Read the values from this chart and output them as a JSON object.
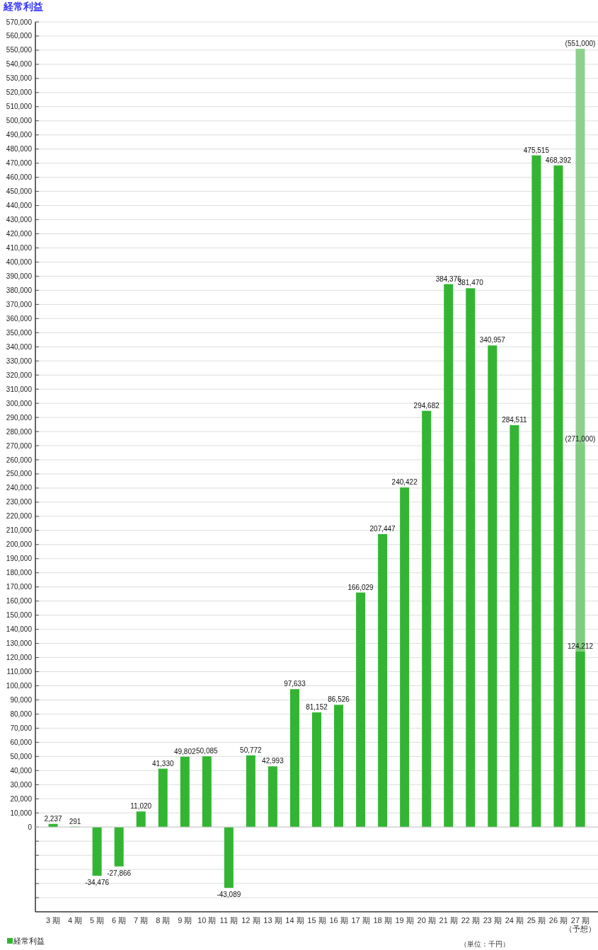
{
  "chart_data": {
    "type": "bar",
    "title": "経常利益",
    "categories": [
      "3 期",
      "4 期",
      "5 期",
      "6 期",
      "7 期",
      "8 期",
      "9 期",
      "10 期",
      "11 期",
      "12 期",
      "13 期",
      "14 期",
      "15 期",
      "16 期",
      "17 期",
      "18 期",
      "19 期",
      "20 期",
      "21 期",
      "22 期",
      "23 期",
      "24 期",
      "25 期",
      "26 期",
      "27 期（予想）"
    ],
    "series": [
      {
        "color": "#8ed08e",
        "values": [
          null,
          null,
          null,
          null,
          null,
          null,
          null,
          null,
          null,
          null,
          null,
          null,
          null,
          null,
          null,
          null,
          null,
          null,
          null,
          null,
          null,
          null,
          null,
          null,
          551000
        ],
        "value_labels": [
          null,
          null,
          null,
          null,
          null,
          null,
          null,
          null,
          null,
          null,
          null,
          null,
          null,
          null,
          null,
          null,
          null,
          null,
          null,
          null,
          null,
          null,
          null,
          null,
          "(551,000)"
        ]
      },
      {
        "color": "#7fce7f",
        "values": [
          null,
          null,
          null,
          null,
          null,
          null,
          null,
          null,
          null,
          null,
          null,
          null,
          null,
          null,
          null,
          null,
          null,
          null,
          null,
          null,
          null,
          null,
          null,
          null,
          271000
        ],
        "value_labels": [
          null,
          null,
          null,
          null,
          null,
          null,
          null,
          null,
          null,
          null,
          null,
          null,
          null,
          null,
          null,
          null,
          null,
          null,
          null,
          null,
          null,
          null,
          null,
          null,
          "(271,000)"
        ]
      },
      {
        "name": "経常利益",
        "color": "#33b533",
        "values": [
          2237,
          291,
          -34476,
          -27866,
          11020,
          41330,
          49802,
          50085,
          -43089,
          50772,
          42993,
          97633,
          81152,
          86526,
          166029,
          207447,
          240422,
          294682,
          384376,
          381470,
          340957,
          284511,
          475515,
          468392,
          124212
        ],
        "value_labels": [
          "2,237",
          "291",
          "-34,476",
          "-27,866",
          "11,020",
          "41,330",
          "49,802",
          "50,085",
          "-43,089",
          "50,772",
          "42,993",
          "97,633",
          "81,152",
          "86,526",
          "166,029",
          "207,447",
          "240,422",
          "294,682",
          "384,376",
          "381,470",
          "340,957",
          "284,511",
          "475,515",
          "468,392",
          "124,212"
        ]
      }
    ],
    "ylim": [
      -60000,
      570000
    ],
    "yticks": [
      {
        "value": -50000,
        "label": null
      },
      {
        "value": -40000,
        "label": null
      },
      {
        "value": -30000,
        "label": null
      },
      {
        "value": -20000,
        "label": null
      },
      {
        "value": -10000,
        "label": null
      },
      0,
      {
        "value": 10000,
        "label": "10,000"
      },
      {
        "value": 20000,
        "label": "20,000"
      },
      {
        "value": 30000,
        "label": "30,000"
      },
      {
        "value": 40000,
        "label": "40,000"
      },
      {
        "value": 50000,
        "label": "50,000"
      },
      {
        "value": 60000,
        "label": "60,000"
      },
      {
        "value": 70000,
        "label": "70,000"
      },
      {
        "value": 80000,
        "label": "80,000"
      },
      {
        "value": 90000,
        "label": "90,000"
      },
      {
        "value": 100000,
        "label": "100,000"
      },
      {
        "value": 110000,
        "label": "110,000"
      },
      {
        "value": 120000,
        "label": "120,000"
      },
      {
        "value": 130000,
        "label": "130,000"
      },
      {
        "value": 140000,
        "label": "140,000"
      },
      {
        "value": 150000,
        "label": "150,000"
      },
      {
        "value": 160000,
        "label": "160,000"
      },
      {
        "value": 170000,
        "label": "170,000"
      },
      {
        "value": 180000,
        "label": "180,000"
      },
      {
        "value": 190000,
        "label": "190,000"
      },
      {
        "value": 200000,
        "label": "200,000"
      },
      {
        "value": 210000,
        "label": "210,000"
      },
      {
        "value": 220000,
        "label": "220,000"
      },
      {
        "value": 230000,
        "label": "230,000"
      },
      {
        "value": 240000,
        "label": "240,000"
      },
      {
        "value": 250000,
        "label": "250,000"
      },
      {
        "value": 260000,
        "label": "260,000"
      },
      {
        "value": 270000,
        "label": "270,000"
      },
      {
        "value": 280000,
        "label": "280,000"
      },
      {
        "value": 290000,
        "label": "290,000"
      },
      {
        "value": 300000,
        "label": "300,000"
      },
      {
        "value": 310000,
        "label": "310,000"
      },
      {
        "value": 320000,
        "label": "320,000"
      },
      {
        "value": 330000,
        "label": "330,000"
      },
      {
        "value": 340000,
        "label": "340,000"
      },
      {
        "value": 350000,
        "label": "350,000"
      },
      {
        "value": 360000,
        "label": "360,000"
      },
      {
        "value": 370000,
        "label": "370,000"
      },
      {
        "value": 380000,
        "label": "380,000"
      },
      {
        "value": 390000,
        "label": "390,000"
      },
      {
        "value": 400000,
        "label": "400,000"
      },
      {
        "value": 410000,
        "label": "410,000"
      },
      {
        "value": 420000,
        "label": "420,000"
      },
      {
        "value": 430000,
        "label": "430,000"
      },
      {
        "value": 440000,
        "label": "440,000"
      },
      {
        "value": 450000,
        "label": "450,000"
      },
      {
        "value": 460000,
        "label": "460,000"
      },
      {
        "value": 470000,
        "label": "470,000"
      },
      {
        "value": 480000,
        "label": "480,000"
      },
      {
        "value": 490000,
        "label": "490,000"
      },
      {
        "value": 500000,
        "label": "500,000"
      },
      {
        "value": 510000,
        "label": "510,000"
      },
      {
        "value": 520000,
        "label": "520,000"
      },
      {
        "value": 530000,
        "label": "530,000"
      },
      {
        "value": 540000,
        "label": "540,000"
      },
      {
        "value": 550000,
        "label": "550,000"
      },
      {
        "value": 560000,
        "label": "560,000"
      },
      {
        "value": 570000,
        "label": "570,000"
      }
    ],
    "grid": "y",
    "legend": "bottom left",
    "annotations": [
      "（単位：千円）"
    ]
  }
}
